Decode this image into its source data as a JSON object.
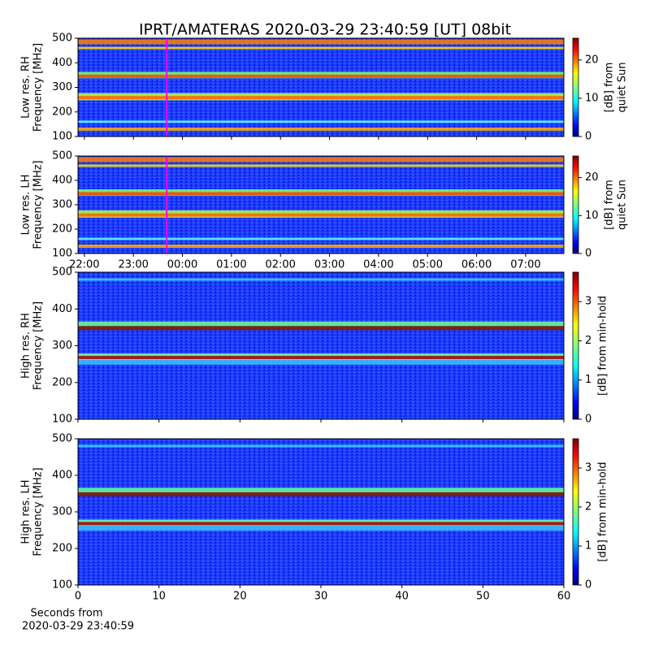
{
  "chart_data": [
    {
      "type": "heatmap",
      "title": "IPRT/AMATERAS 2020-03-29 23:40:59 [UT]   08bit",
      "ylabel": [
        "Low res. RH",
        "Frequency [MHz]"
      ],
      "ylim": [
        100,
        500
      ],
      "yticks": [
        100,
        200,
        300,
        400,
        500
      ],
      "xlim": [
        21.87,
        31.78
      ],
      "xticks": [
        {
          "value": 22,
          "label": "22:00"
        },
        {
          "value": 23,
          "label": "23:00"
        },
        {
          "value": 24,
          "label": "00:00"
        },
        {
          "value": 25,
          "label": "01:00"
        },
        {
          "value": 26,
          "label": "02:00"
        },
        {
          "value": 27,
          "label": "03:00"
        },
        {
          "value": 28,
          "label": "04:00"
        },
        {
          "value": 29,
          "label": "05:00"
        },
        {
          "value": 30,
          "label": "06:00"
        },
        {
          "value": 31,
          "label": "07:00"
        }
      ],
      "show_xtick_labels": false,
      "marker_x": 23.68,
      "marker_color": "#ff00ff",
      "colorbar_label": [
        "[dB] from",
        "quiet Sun"
      ],
      "clim": [
        0,
        25.7
      ],
      "cticks": [
        0,
        10,
        20
      ]
    },
    {
      "type": "heatmap",
      "ylabel": [
        "Low res. LH",
        "Frequency [MHz]"
      ],
      "ylim": [
        100,
        500
      ],
      "yticks": [
        100,
        200,
        300,
        400,
        500
      ],
      "xlim": [
        21.87,
        31.78
      ],
      "xticks": [
        {
          "value": 22,
          "label": "22:00"
        },
        {
          "value": 23,
          "label": "23:00"
        },
        {
          "value": 24,
          "label": "00:00"
        },
        {
          "value": 25,
          "label": "01:00"
        },
        {
          "value": 26,
          "label": "02:00"
        },
        {
          "value": 27,
          "label": "03:00"
        },
        {
          "value": 28,
          "label": "04:00"
        },
        {
          "value": 29,
          "label": "05:00"
        },
        {
          "value": 30,
          "label": "06:00"
        },
        {
          "value": 31,
          "label": "07:00"
        }
      ],
      "show_xtick_labels": true,
      "marker_x": 23.68,
      "marker_color": "#ff00ff",
      "colorbar_label": [
        "[dB] from",
        "quiet Sun"
      ],
      "clim": [
        0,
        25.7
      ],
      "cticks": [
        0,
        10,
        20
      ]
    },
    {
      "type": "heatmap",
      "ylabel": [
        "High res. RH",
        "Frequency [MHz]"
      ],
      "ylim": [
        100,
        500
      ],
      "yticks": [
        100,
        200,
        300,
        400,
        500
      ],
      "xlim": [
        0,
        60
      ],
      "xticks": [
        0,
        10,
        20,
        30,
        40,
        50,
        60
      ],
      "show_xtick_labels": false,
      "colorbar_label": [
        "[dB] from min-hold"
      ],
      "clim": [
        0,
        3.75
      ],
      "cticks": [
        0,
        1,
        2,
        3
      ]
    },
    {
      "type": "heatmap",
      "ylabel": [
        "High res. LH",
        "Frequency [MHz]"
      ],
      "ylim": [
        100,
        500
      ],
      "yticks": [
        100,
        200,
        300,
        400,
        500
      ],
      "xlim": [
        0,
        60
      ],
      "xticks": [
        0,
        10,
        20,
        30,
        40,
        50,
        60
      ],
      "show_xtick_labels": true,
      "xlabel": [
        "Seconds from",
        "2020-03-29 23:40:59"
      ],
      "colorbar_label": [
        "[dB] from min-hold"
      ],
      "clim": [
        0,
        3.75
      ],
      "cticks": [
        0,
        1,
        2,
        3
      ]
    }
  ]
}
